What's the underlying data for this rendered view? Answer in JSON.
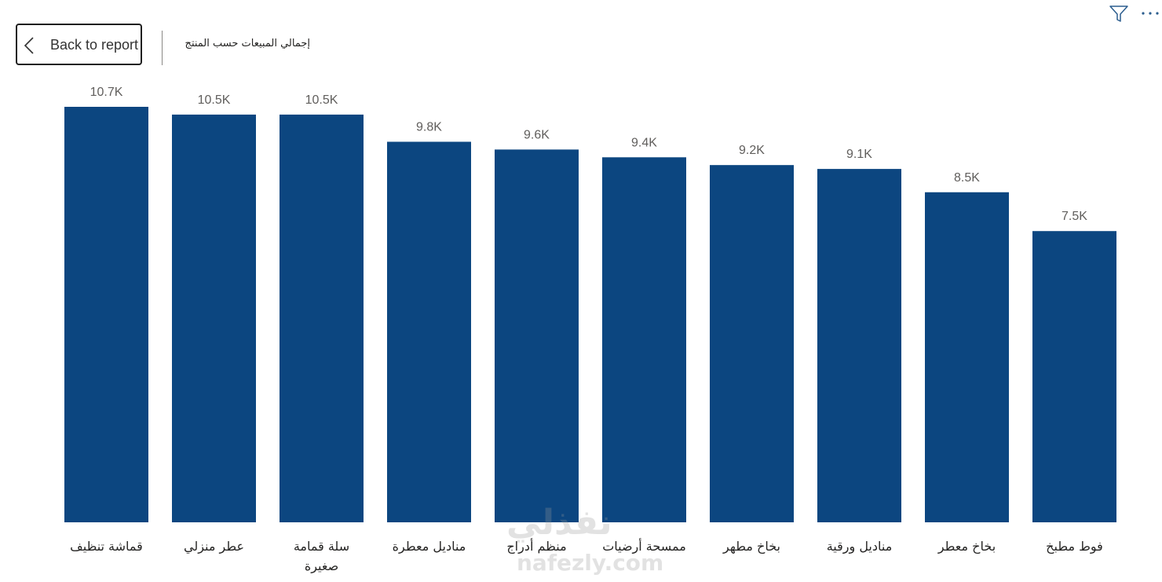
{
  "header": {
    "back_label": "Back to report",
    "title": "إجمالي المبيعات حسب المنتج"
  },
  "toolbar": {
    "filter_icon": "filter-icon",
    "more_icon": "more-options-icon"
  },
  "watermark": {
    "arabic": "نفذلي",
    "latin": "nafezly.com"
  },
  "colors": {
    "bar": "#0c4680",
    "label": "#605e5c",
    "axis_text": "#252423"
  },
  "chart_data": {
    "type": "bar",
    "title": "إجمالي المبيعات حسب المنتج",
    "xlabel": "",
    "ylabel": "",
    "categories": [
      "قماشة تنظيف",
      "عطر منزلي",
      "سلة قمامة صغيرة",
      "مناديل معطرة",
      "منظم أدراج",
      "ممسحة أرضيات",
      "بخاخ مطهر",
      "مناديل ورقية",
      "بخاخ معطر",
      "فوط مطبخ"
    ],
    "category_lines": [
      [
        "قماشة تنظيف"
      ],
      [
        "عطر منزلي"
      ],
      [
        "سلة قمامة",
        "صغيرة"
      ],
      [
        "مناديل معطرة"
      ],
      [
        "منظم أدراج"
      ],
      [
        "ممسحة أرضيات"
      ],
      [
        "بخاخ مطهر"
      ],
      [
        "مناديل ورقية"
      ],
      [
        "بخاخ معطر"
      ],
      [
        "فوط مطبخ"
      ]
    ],
    "values": [
      10700,
      10500,
      10500,
      9800,
      9600,
      9400,
      9200,
      9100,
      8500,
      7500
    ],
    "data_labels": [
      "10.7K",
      "10.5K",
      "10.5K",
      "9.8K",
      "9.6K",
      "9.4K",
      "9.2K",
      "9.1K",
      "8.5K",
      "7.5K"
    ],
    "ylim": [
      0,
      10700
    ],
    "grid": false,
    "legend": "none"
  }
}
